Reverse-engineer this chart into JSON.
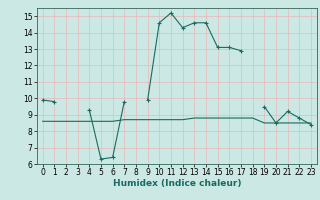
{
  "xlabel": "Humidex (Indice chaleur)",
  "bg_color": "#cbe8e4",
  "grid_color": "#e8b8b8",
  "line_color": "#1a6b5e",
  "line1_x": [
    0,
    1,
    2,
    3,
    4,
    5,
    6,
    7,
    8,
    9,
    10,
    11,
    12,
    13,
    14,
    15,
    16,
    17,
    18,
    19,
    20,
    21,
    22,
    23
  ],
  "line1_y": [
    9.9,
    9.8,
    null,
    null,
    9.3,
    6.3,
    6.4,
    9.8,
    null,
    9.9,
    14.6,
    15.2,
    14.3,
    14.6,
    14.6,
    13.1,
    13.1,
    12.9,
    null,
    9.5,
    8.5,
    9.2,
    8.8,
    8.4
  ],
  "line2_x": [
    0,
    1,
    2,
    3,
    4,
    5,
    6,
    7,
    8,
    9,
    10,
    11,
    12,
    13,
    14,
    15,
    16,
    17,
    18,
    19,
    20,
    21,
    22,
    23
  ],
  "line2_y": [
    8.6,
    8.6,
    8.6,
    8.6,
    8.6,
    8.6,
    8.6,
    8.7,
    8.7,
    8.7,
    8.7,
    8.7,
    8.7,
    8.8,
    8.8,
    8.8,
    8.8,
    8.8,
    8.8,
    8.5,
    8.5,
    8.5,
    8.5,
    8.5
  ],
  "xlim": [
    -0.5,
    23.5
  ],
  "ylim": [
    6,
    15.5
  ],
  "yticks": [
    6,
    7,
    8,
    9,
    10,
    11,
    12,
    13,
    14,
    15
  ],
  "label_fontsize": 6.5,
  "tick_fontsize": 5.5,
  "xlabel_fontsize": 6.5
}
